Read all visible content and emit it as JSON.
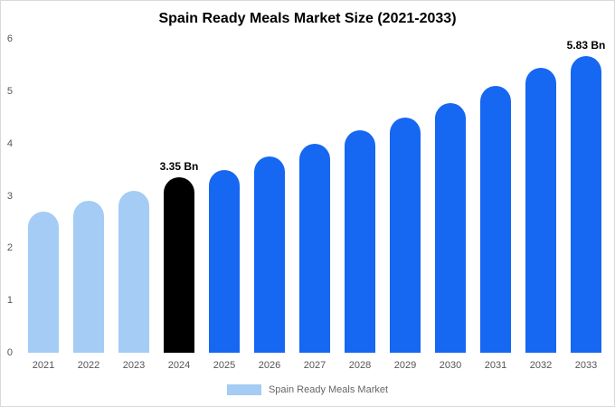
{
  "title": "Spain Ready Meals Market Size (2021-2033)",
  "chart_data": {
    "type": "bar",
    "title": "Spain Ready Meals Market Size (2021-2033)",
    "categories": [
      "2021",
      "2022",
      "2023",
      "2024",
      "2025",
      "2026",
      "2027",
      "2028",
      "2029",
      "2030",
      "2031",
      "2032",
      "2033"
    ],
    "values": [
      2.7,
      2.9,
      3.1,
      3.35,
      3.5,
      3.75,
      4.0,
      4.25,
      4.5,
      4.78,
      5.1,
      5.45,
      5.83
    ],
    "bar_colors": [
      "#A4CCF4",
      "#A4CCF4",
      "#A4CCF4",
      "#000000",
      "#1667F2",
      "#1667F2",
      "#1667F2",
      "#1667F2",
      "#1667F2",
      "#1667F2",
      "#1667F2",
      "#1667F2",
      "#1667F2"
    ],
    "xlabel": "",
    "ylabel": "",
    "ylim": [
      0,
      6
    ],
    "yticks": [
      0,
      1,
      2,
      3,
      4,
      5,
      6
    ],
    "grid": false,
    "annotations": [
      {
        "index": 3,
        "text": "3.35 Bn"
      },
      {
        "index": 12,
        "text": "5.83 Bn"
      }
    ],
    "legend": {
      "position": "bottom",
      "entries": [
        {
          "label": "Spain Ready Meals Market",
          "color": "#A4CCF4"
        }
      ]
    }
  }
}
